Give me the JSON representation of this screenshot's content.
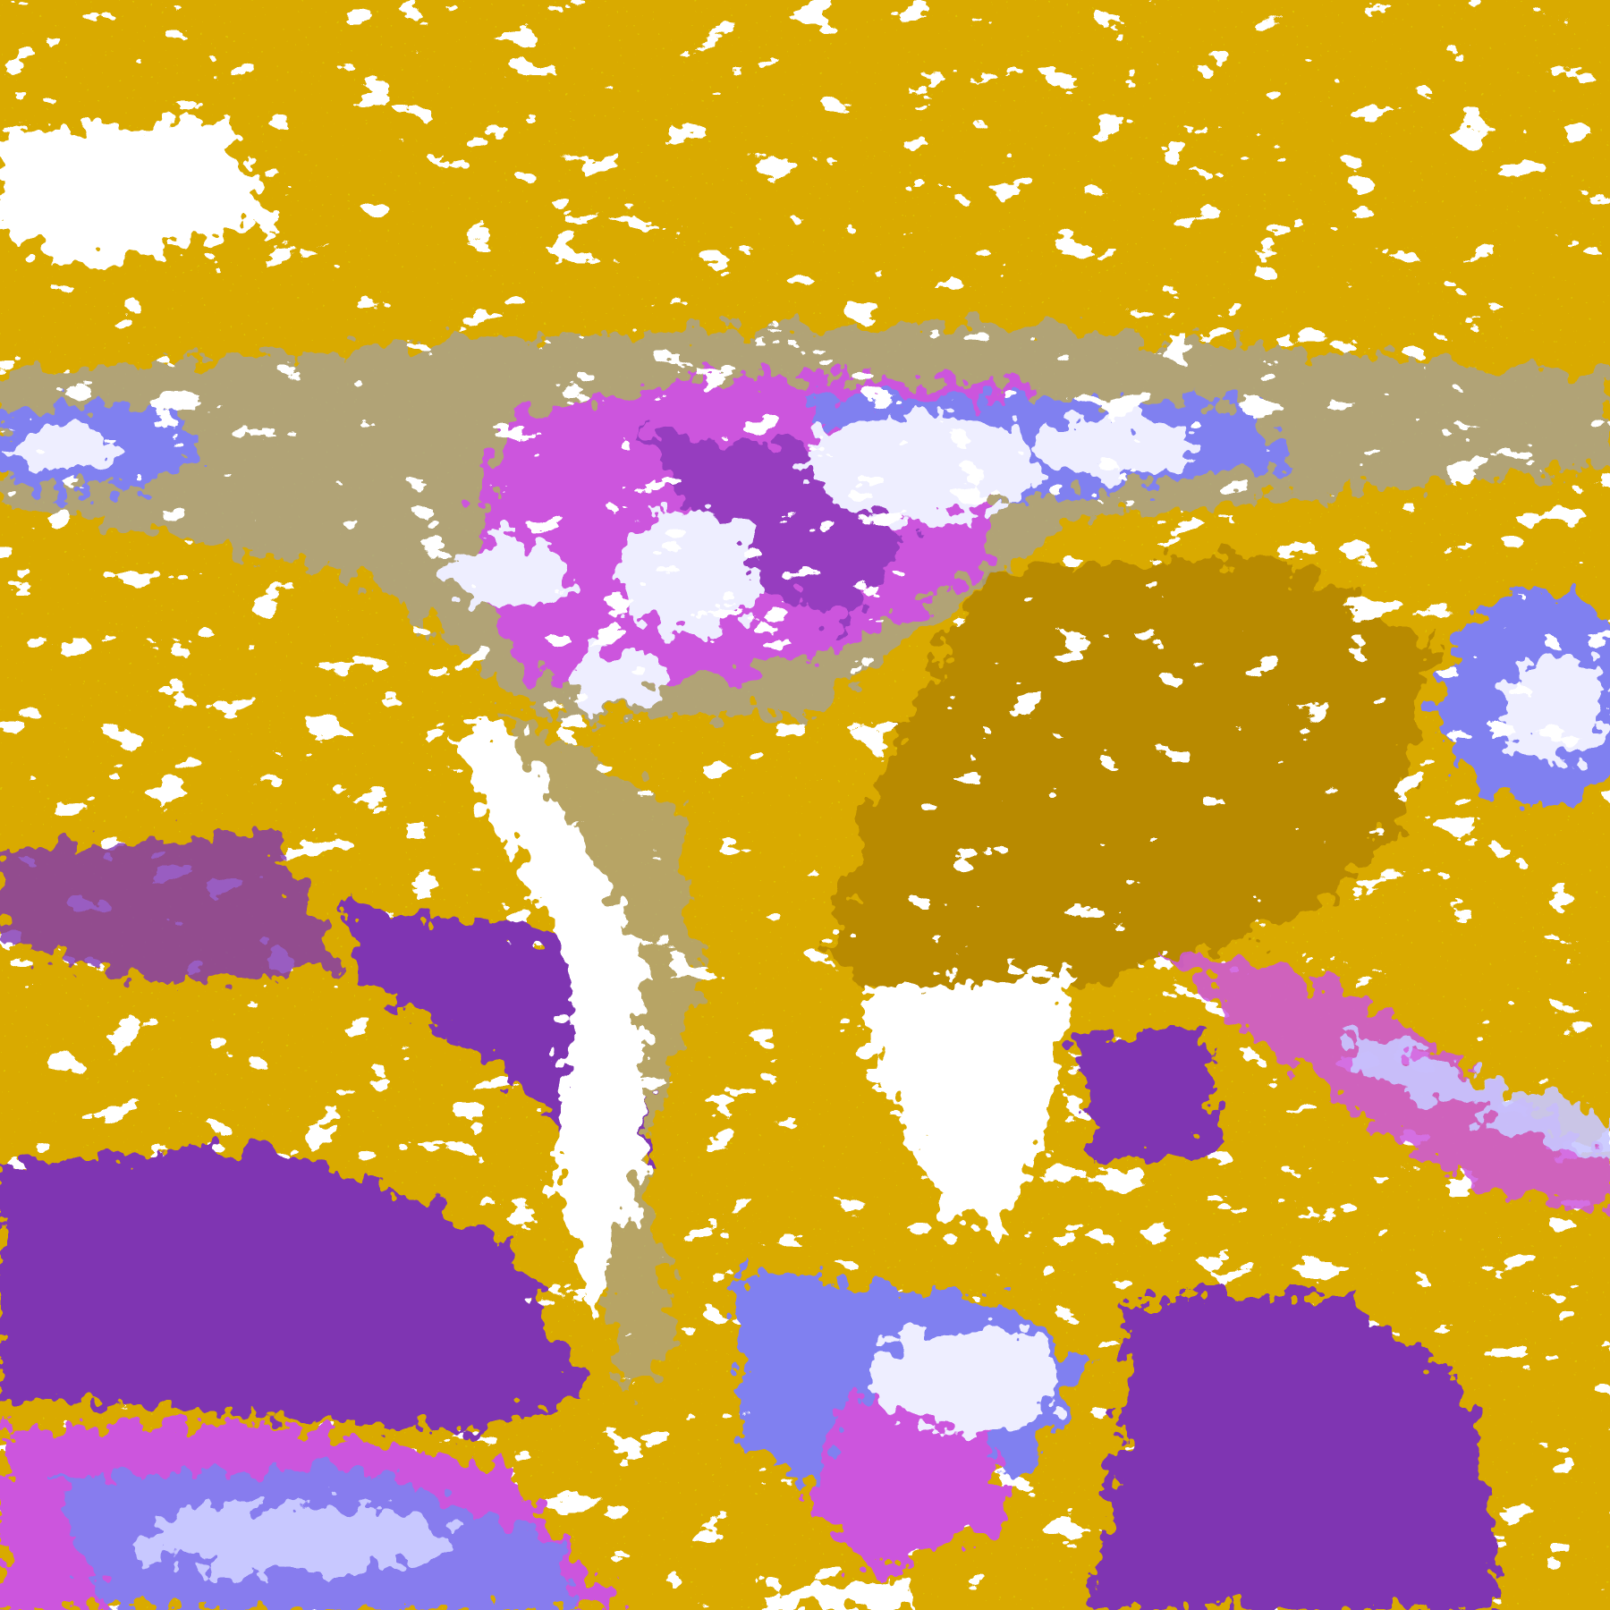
{
  "map": {
    "type": "false-color satellite classification image",
    "palette": {
      "clear": "#ffffff",
      "gold": "#d9aa00",
      "dark_gold": "#b88a00",
      "gray": "#a0a0a8",
      "purple": "#7f35b2",
      "magenta": "#cc55dd",
      "lavender": "#8080f0",
      "light_lavender": "#c8c8ff",
      "near_white": "#eeeeff"
    }
  }
}
